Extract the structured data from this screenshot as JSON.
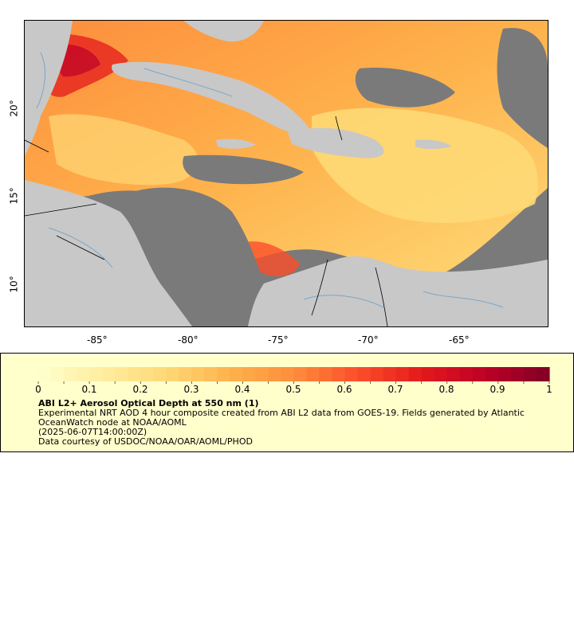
{
  "map": {
    "longitude_ticks": [
      "-85°",
      "-80°",
      "-75°",
      "-70°",
      "-65°"
    ],
    "latitude_ticks": [
      "20°",
      "15°",
      "10°"
    ],
    "colors": {
      "no_data": "#7a7a7a",
      "land_mask": "#c8c8c8",
      "rivers": "#7aa6c8",
      "borders": "#000000"
    }
  },
  "legend": {
    "colorbar": {
      "min": 0,
      "max": 1,
      "tick_labels": [
        "0",
        "0.1",
        "0.2",
        "0.3",
        "0.4",
        "0.5",
        "0.6",
        "0.7",
        "0.8",
        "0.9",
        "1"
      ],
      "colors": [
        "#ffffcc",
        "#ffeda0",
        "#fed976",
        "#feb24c",
        "#fd8d3c",
        "#fc4e2a",
        "#e31a1c",
        "#bd0026",
        "#800026"
      ]
    },
    "title": "ABI L2+ Aerosol Optical Depth at 550 nm (1)",
    "line1": "Experimental NRT AOD 4 hour composite created from ABI L2 data from GOES-19. Fields generated by Atlantic OceanWatch node at NOAA/AOML",
    "line2": "(2025-06-07T14:00:00Z)",
    "line3": "Data courtesy of USDOC/NOAA/OAR/AOML/PHOD"
  }
}
